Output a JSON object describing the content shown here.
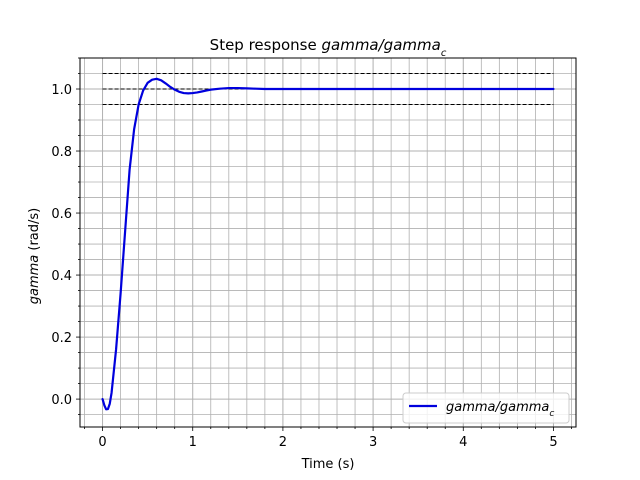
{
  "chart_data": {
    "type": "line",
    "title": {
      "prefix": "Step response ",
      "math_main": "gamma/gamma",
      "math_sub": "c"
    },
    "xlabel": "Time (s)",
    "ylabel": {
      "math": "gamma",
      "rest": " (rad/s)"
    },
    "xlim": [
      -0.25,
      5.25
    ],
    "ylim": [
      -0.09,
      1.1
    ],
    "x_ticks": [
      0,
      1,
      2,
      3,
      4,
      5
    ],
    "x_tick_labels": [
      "0",
      "1",
      "2",
      "3",
      "4",
      "5"
    ],
    "y_ticks": [
      0.0,
      0.2,
      0.4,
      0.6,
      0.8,
      1.0
    ],
    "y_tick_labels": [
      "0.0",
      "0.2",
      "0.4",
      "0.6",
      "0.8",
      "1.0"
    ],
    "x_minor_step": 0.2,
    "y_minor_step": 0.05,
    "grid": true,
    "legend": {
      "location": "lower-right",
      "entries": [
        {
          "math_main": "gamma/gamma",
          "math_sub": "c"
        }
      ]
    },
    "series": [
      {
        "name": "gamma/gamma_c",
        "color": "#0000dd",
        "style": "solid",
        "x": [
          0,
          0.02,
          0.04,
          0.06,
          0.08,
          0.1,
          0.15,
          0.2,
          0.25,
          0.3,
          0.35,
          0.4,
          0.45,
          0.5,
          0.55,
          0.6,
          0.65,
          0.7,
          0.75,
          0.8,
          0.85,
          0.9,
          0.95,
          1.0,
          1.05,
          1.1,
          1.15,
          1.2,
          1.3,
          1.4,
          1.5,
          1.6,
          1.7,
          1.8,
          2.0,
          2.2,
          2.5,
          3.0,
          3.5,
          4.0,
          4.5,
          5.0
        ],
        "y": [
          0.0,
          -0.02,
          -0.033,
          -0.032,
          -0.015,
          0.02,
          0.16,
          0.34,
          0.54,
          0.74,
          0.87,
          0.95,
          0.995,
          1.02,
          1.03,
          1.033,
          1.028,
          1.018,
          1.007,
          0.998,
          0.991,
          0.987,
          0.986,
          0.987,
          0.989,
          0.992,
          0.995,
          0.998,
          1.001,
          1.003,
          1.003,
          1.002,
          1.001,
          1.0,
          1.0,
          1.0,
          1.0,
          1.0,
          1.0,
          1.0,
          1.0,
          1.0
        ]
      },
      {
        "name": "upper bound",
        "color": "#000000",
        "style": "dashed",
        "x": [
          0,
          5
        ],
        "y": [
          1.05,
          1.05
        ]
      },
      {
        "name": "reference",
        "color": "#000000",
        "style": "dashed",
        "x": [
          0,
          5
        ],
        "y": [
          1.0,
          1.0
        ]
      },
      {
        "name": "lower bound",
        "color": "#000000",
        "style": "dashed",
        "x": [
          0,
          5
        ],
        "y": [
          0.95,
          0.95
        ]
      }
    ]
  }
}
